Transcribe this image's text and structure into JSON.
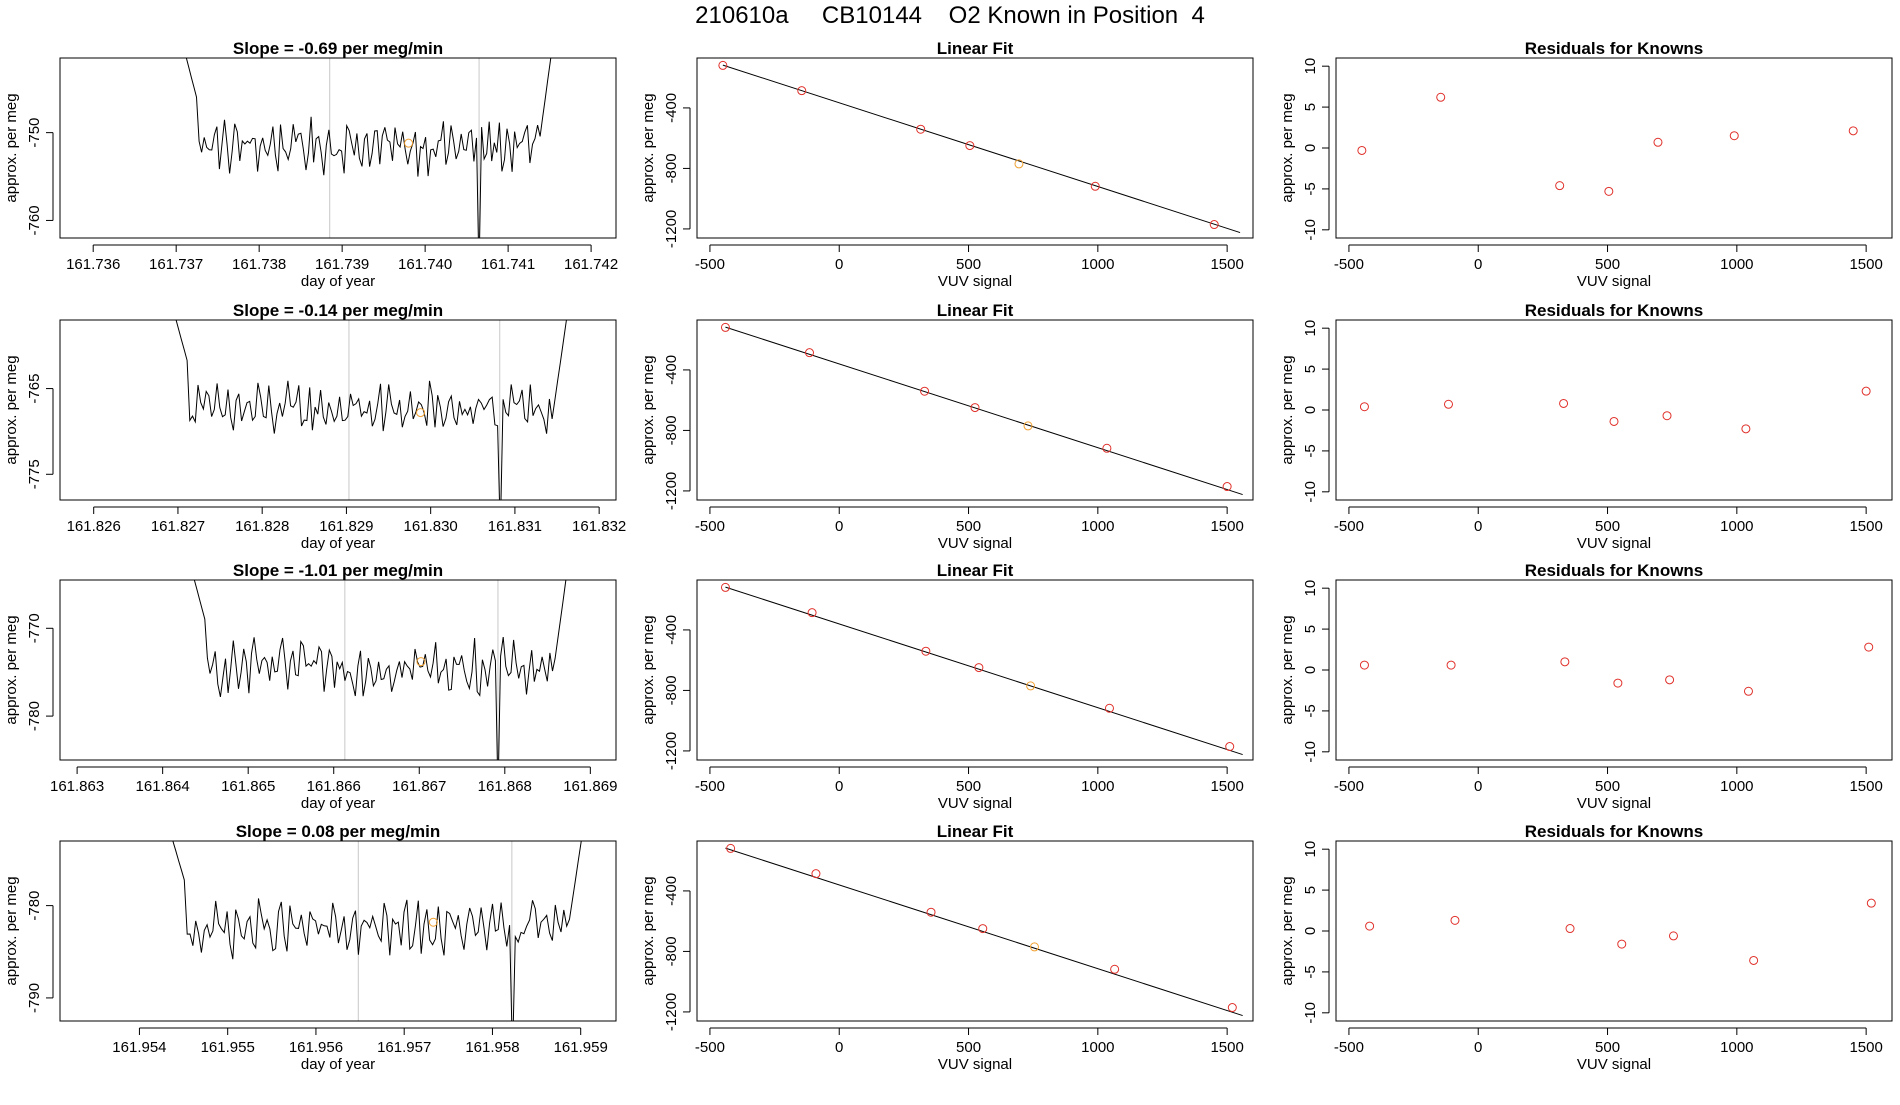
{
  "main_title": "210610a     CB10144    O2 Known in Position  4",
  "labels": {
    "y_label": "approx. per meg",
    "ts_xlabel": "day of year",
    "fit_title": "Linear Fit",
    "fit_xlabel": "VUV signal",
    "resid_title": "Residuals for Knowns"
  },
  "colors": {
    "line": "#000000",
    "known_point": "#e0302a",
    "unknown_point": "#f0a030",
    "marker_line": "#c8c8c8"
  },
  "chart_data": [
    {
      "row": 1,
      "timeseries": {
        "type": "line",
        "title": "Slope =  -0.69  per meg/min",
        "xlim": [
          161.7356,
          161.7423
        ],
        "ylim": [
          -762,
          -741.5
        ],
        "x_ticks": [
          "161.736",
          "161.737",
          "161.738",
          "161.739",
          "161.740",
          "161.741",
          "161.742"
        ],
        "y_ticks": [
          -760,
          -750
        ],
        "line_start": 161.737,
        "line_end": 161.7416,
        "baseline": -751.5,
        "vlines": [
          161.73885,
          161.74065
        ],
        "unknown_point": [
          161.7398,
          -751.2
        ]
      },
      "fit": {
        "type": "scatter",
        "title": "Linear Fit",
        "xlim": [
          -550,
          1600
        ],
        "ylim": [
          -1260,
          -70
        ],
        "x_ticks": [
          "-500",
          "0",
          "500",
          "1000",
          "1500"
        ],
        "y_ticks": [
          -1200,
          -800,
          -400
        ],
        "line": [
          [
            -450,
            -117
          ],
          [
            1550,
            -1224
          ]
        ],
        "known": [
          [
            -450,
            -119
          ],
          [
            -145,
            -286
          ],
          [
            315,
            -541
          ],
          [
            505,
            -649
          ],
          [
            990,
            -918
          ],
          [
            1450,
            -1171
          ]
        ],
        "unknown": [
          [
            695,
            -770
          ]
        ]
      },
      "residuals": {
        "type": "scatter",
        "title": "Residuals for Knowns",
        "xlim": [
          -550,
          1600
        ],
        "ylim": [
          -11,
          11
        ],
        "x_ticks": [
          "-500",
          "0",
          "500",
          "1000",
          "1500"
        ],
        "y_ticks": [
          -10,
          -5,
          0,
          5,
          10
        ],
        "points": [
          [
            -450,
            -0.3
          ],
          [
            -145,
            6.2
          ],
          [
            315,
            -4.6
          ],
          [
            505,
            -5.3
          ],
          [
            695,
            0.7
          ],
          [
            990,
            1.5
          ],
          [
            1450,
            2.1
          ]
        ]
      }
    },
    {
      "row": 2,
      "timeseries": {
        "type": "line",
        "title": "Slope =  -0.14  per meg/min",
        "xlim": [
          161.8256,
          161.8322
        ],
        "ylim": [
          -778,
          -757
        ],
        "x_ticks": [
          "161.826",
          "161.827",
          "161.828",
          "161.829",
          "161.830",
          "161.831",
          "161.832"
        ],
        "y_ticks": [
          -775,
          -765
        ],
        "line_start": 161.82685,
        "line_end": 161.8317,
        "baseline": -767.5,
        "vlines": [
          161.82903,
          161.83082
        ],
        "unknown_point": [
          161.82988,
          -767.8
        ]
      },
      "fit": {
        "type": "scatter",
        "title": "Linear Fit",
        "xlim": [
          -550,
          1600
        ],
        "ylim": [
          -1260,
          -70
        ],
        "x_ticks": [
          "-500",
          "0",
          "500",
          "1000",
          "1500"
        ],
        "y_ticks": [
          -1200,
          -800,
          -400
        ],
        "line": [
          [
            -440,
            -117
          ],
          [
            1560,
            -1224
          ]
        ],
        "known": [
          [
            -440,
            -119
          ],
          [
            -115,
            -286
          ],
          [
            330,
            -541
          ],
          [
            525,
            -649
          ],
          [
            1035,
            -918
          ],
          [
            1500,
            -1171
          ]
        ],
        "unknown": [
          [
            730,
            -770
          ]
        ]
      },
      "residuals": {
        "type": "scatter",
        "title": "Residuals for Knowns",
        "xlim": [
          -550,
          1600
        ],
        "ylim": [
          -11,
          11
        ],
        "x_ticks": [
          "-500",
          "0",
          "500",
          "1000",
          "1500"
        ],
        "y_ticks": [
          -10,
          -5,
          0,
          5,
          10
        ],
        "points": [
          [
            -440,
            0.4
          ],
          [
            -115,
            0.7
          ],
          [
            330,
            0.8
          ],
          [
            525,
            -1.4
          ],
          [
            730,
            -0.7
          ],
          [
            1035,
            -2.3
          ],
          [
            1500,
            2.3
          ]
        ]
      }
    },
    {
      "row": 3,
      "timeseries": {
        "type": "line",
        "title": "Slope =  -1.01  per meg/min",
        "xlim": [
          161.8628,
          161.8693
        ],
        "ylim": [
          -785,
          -764.5
        ],
        "x_ticks": [
          "161.863",
          "161.864",
          "161.865",
          "161.866",
          "161.867",
          "161.868",
          "161.869"
        ],
        "y_ticks": [
          -780,
          -770
        ],
        "line_start": 161.86425,
        "line_end": 161.8688,
        "baseline": -774.5,
        "vlines": [
          161.86613,
          161.86792
        ],
        "unknown_point": [
          161.86702,
          -773.8
        ]
      },
      "fit": {
        "type": "scatter",
        "title": "Linear Fit",
        "xlim": [
          -550,
          1600
        ],
        "ylim": [
          -1260,
          -70
        ],
        "x_ticks": [
          "-500",
          "0",
          "500",
          "1000",
          "1500"
        ],
        "y_ticks": [
          -1200,
          -800,
          -400
        ],
        "line": [
          [
            -440,
            -117
          ],
          [
            1560,
            -1224
          ]
        ],
        "known": [
          [
            -440,
            -119
          ],
          [
            -105,
            -286
          ],
          [
            335,
            -541
          ],
          [
            540,
            -649
          ],
          [
            1045,
            -918
          ],
          [
            1510,
            -1171
          ]
        ],
        "unknown": [
          [
            740,
            -770
          ]
        ]
      },
      "residuals": {
        "type": "scatter",
        "title": "Residuals for Knowns",
        "xlim": [
          -550,
          1600
        ],
        "ylim": [
          -11,
          11
        ],
        "x_ticks": [
          "-500",
          "0",
          "500",
          "1000",
          "1500"
        ],
        "y_ticks": [
          -10,
          -5,
          0,
          5,
          10
        ],
        "points": [
          [
            -440,
            0.6
          ],
          [
            -105,
            0.6
          ],
          [
            335,
            1.0
          ],
          [
            540,
            -1.6
          ],
          [
            740,
            -1.2
          ],
          [
            1045,
            -2.6
          ],
          [
            1510,
            2.8
          ]
        ]
      }
    },
    {
      "row": 4,
      "timeseries": {
        "type": "line",
        "title": "Slope =  0.08  per meg/min",
        "xlim": [
          161.9531,
          161.9594
        ],
        "ylim": [
          -792.5,
          -773
        ],
        "x_ticks": [
          "161.954",
          "161.955",
          "161.956",
          "161.957",
          "161.958",
          "161.959"
        ],
        "y_ticks": [
          -790,
          -780
        ],
        "line_start": 161.95425,
        "line_end": 161.9591,
        "baseline": -782.5,
        "vlines": [
          161.95648,
          161.95822
        ],
        "unknown_point": [
          161.95733,
          -781.8
        ]
      },
      "fit": {
        "type": "scatter",
        "title": "Linear Fit",
        "xlim": [
          -550,
          1600
        ],
        "ylim": [
          -1260,
          -70
        ],
        "x_ticks": [
          "-500",
          "0",
          "500",
          "1000",
          "1500"
        ],
        "y_ticks": [
          -1200,
          -800,
          -400
        ],
        "line": [
          [
            -440,
            -117
          ],
          [
            1560,
            -1224
          ]
        ],
        "known": [
          [
            -420,
            -119
          ],
          [
            -90,
            -286
          ],
          [
            355,
            -541
          ],
          [
            555,
            -649
          ],
          [
            1065,
            -918
          ],
          [
            1520,
            -1171
          ]
        ],
        "unknown": [
          [
            755,
            -770
          ]
        ]
      },
      "residuals": {
        "type": "scatter",
        "title": "Residuals for Knowns",
        "xlim": [
          -550,
          1600
        ],
        "ylim": [
          -11,
          11
        ],
        "x_ticks": [
          "-500",
          "0",
          "500",
          "1000",
          "1500"
        ],
        "y_ticks": [
          -10,
          -5,
          0,
          5,
          10
        ],
        "points": [
          [
            -420,
            0.6
          ],
          [
            -90,
            1.3
          ],
          [
            355,
            0.3
          ],
          [
            555,
            -1.6
          ],
          [
            755,
            -0.6
          ],
          [
            1065,
            -3.6
          ],
          [
            1520,
            3.4
          ]
        ]
      }
    }
  ]
}
